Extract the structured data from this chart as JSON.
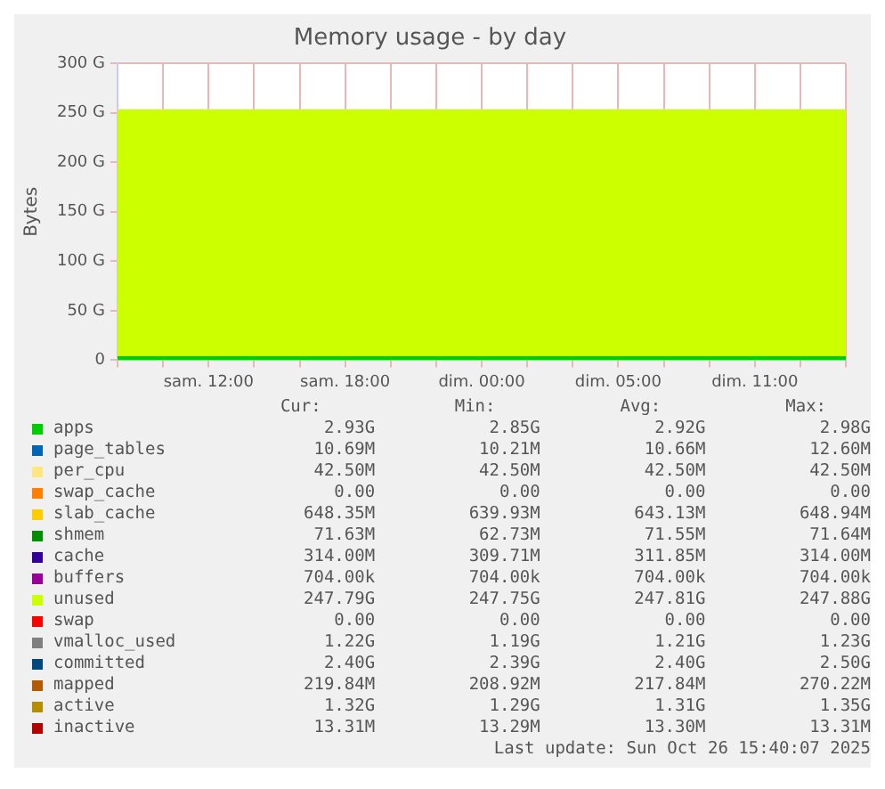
{
  "chart_data": {
    "type": "area",
    "title": "Memory usage - by day",
    "ylabel": "Bytes",
    "stacked": true,
    "grid": true,
    "legend": "bottom",
    "marker": "none",
    "categories": [
      null,
      null,
      "sam. 12:00",
      null,
      null,
      "sam. 18:00",
      null,
      null,
      "dim. 00:00",
      null,
      null,
      "dim. 05:00",
      null,
      null,
      "dim. 11:00",
      null,
      null
    ],
    "ylim": [
      0,
      300
    ],
    "yticks": [
      0,
      {
        "value": 50,
        "label": "50 G"
      },
      {
        "value": 100,
        "label": "100 G"
      },
      {
        "value": 150,
        "label": "150 G"
      },
      {
        "value": 200,
        "label": "200 G"
      },
      {
        "value": 250,
        "label": "250 G"
      },
      {
        "value": 300,
        "label": "300 G"
      }
    ],
    "series": [
      {
        "name": "apps",
        "color": "#00cc00",
        "values": [
          3,
          3,
          3,
          3,
          3,
          3,
          3,
          3,
          3,
          3,
          3,
          3,
          3,
          3,
          3,
          3,
          3
        ]
      },
      {
        "name": "page_tables",
        "color": "#0066b3",
        "values": [
          null,
          null,
          null,
          null,
          null,
          null,
          null,
          null,
          null,
          null,
          null,
          null,
          null,
          null,
          null,
          null,
          null
        ]
      },
      {
        "name": "per_cpu",
        "color": "#ffe680",
        "values": [
          null,
          null,
          null,
          null,
          null,
          null,
          null,
          null,
          null,
          null,
          null,
          null,
          null,
          null,
          null,
          null,
          null
        ]
      },
      {
        "name": "swap_cache",
        "color": "#ff8000",
        "values": [
          null,
          null,
          null,
          null,
          null,
          null,
          null,
          null,
          null,
          null,
          null,
          null,
          null,
          null,
          null,
          null,
          null
        ]
      },
      {
        "name": "slab_cache",
        "color": "#ffcc00",
        "values": [
          null,
          null,
          null,
          null,
          null,
          null,
          null,
          null,
          null,
          null,
          null,
          null,
          null,
          null,
          null,
          null,
          null
        ]
      },
      {
        "name": "shmem",
        "color": "#008f00",
        "values": [
          null,
          null,
          null,
          null,
          null,
          null,
          null,
          null,
          null,
          null,
          null,
          null,
          null,
          null,
          null,
          null,
          null
        ]
      },
      {
        "name": "cache",
        "color": "#330099",
        "values": [
          null,
          null,
          null,
          null,
          null,
          null,
          null,
          null,
          null,
          null,
          null,
          null,
          null,
          null,
          null,
          null,
          null
        ]
      },
      {
        "name": "buffers",
        "color": "#990099",
        "values": [
          null,
          null,
          null,
          null,
          null,
          null,
          null,
          null,
          null,
          null,
          null,
          null,
          null,
          null,
          null,
          null,
          null
        ]
      },
      {
        "name": "unused",
        "color": "#ccff00",
        "values": [
          250,
          250,
          250,
          250,
          250,
          250,
          250,
          250,
          250,
          250,
          250,
          250,
          250,
          250,
          250,
          250,
          250
        ]
      },
      {
        "name": "swap",
        "color": "#ff0000",
        "values": [
          null,
          null,
          null,
          null,
          null,
          null,
          null,
          null,
          null,
          null,
          null,
          null,
          null,
          null,
          null,
          null,
          null
        ]
      },
      {
        "name": "vmalloc_used",
        "type": "line",
        "color": "#808080",
        "values": [
          null,
          null,
          null,
          null,
          null,
          null,
          null,
          null,
          null,
          null,
          null,
          null,
          null,
          null,
          null,
          null,
          null
        ]
      },
      {
        "name": "committed",
        "type": "line",
        "color": "#00487d",
        "values": [
          null,
          null,
          null,
          null,
          null,
          null,
          null,
          null,
          null,
          null,
          null,
          null,
          null,
          null,
          null,
          null,
          null
        ]
      },
      {
        "name": "mapped",
        "type": "line",
        "color": "#b35a00",
        "values": [
          null,
          null,
          null,
          null,
          null,
          null,
          null,
          null,
          null,
          null,
          null,
          null,
          null,
          null,
          null,
          null,
          null
        ]
      },
      {
        "name": "active",
        "type": "line",
        "color": "#b38f00",
        "values": [
          null,
          null,
          null,
          null,
          null,
          null,
          null,
          null,
          null,
          null,
          null,
          null,
          null,
          null,
          null,
          null,
          null
        ]
      },
      {
        "name": "inactive",
        "type": "line",
        "color": "#b30000",
        "values": [
          null,
          null,
          null,
          null,
          null,
          null,
          null,
          null,
          null,
          null,
          null,
          null,
          null,
          null,
          null,
          null,
          null
        ]
      }
    ],
    "annotations": [
      "Cur:",
      "Min:",
      "Avg:",
      "Max:",
      "2.93G",
      "2.85G",
      "2.92G",
      "2.98G",
      "10.69M",
      "10.21M",
      "10.66M",
      "12.60M",
      "42.50M",
      "42.50M",
      "42.50M",
      "42.50M",
      "0.00",
      "0.00",
      "0.00",
      "0.00",
      "648.35M",
      "639.93M",
      "643.13M",
      "648.94M",
      "71.63M",
      "62.73M",
      "71.55M",
      "71.64M",
      "314.00M",
      "309.71M",
      "311.85M",
      "314.00M",
      "704.00k",
      "704.00k",
      "704.00k",
      "704.00k",
      "247.79G",
      "247.75G",
      "247.81G",
      "247.88G",
      "0.00",
      "0.00",
      "0.00",
      "0.00",
      "1.22G",
      "1.19G",
      "1.21G",
      "1.23G",
      "2.40G",
      "2.39G",
      "2.40G",
      "2.50G",
      "219.84M",
      "208.92M",
      "217.84M",
      "270.22M",
      "1.32G",
      "1.29G",
      "1.31G",
      "1.35G",
      "13.31M",
      "13.29M",
      "13.30M",
      "13.31M",
      "Last update: Sun Oct 26 15:40:07 2025"
    ]
  }
}
